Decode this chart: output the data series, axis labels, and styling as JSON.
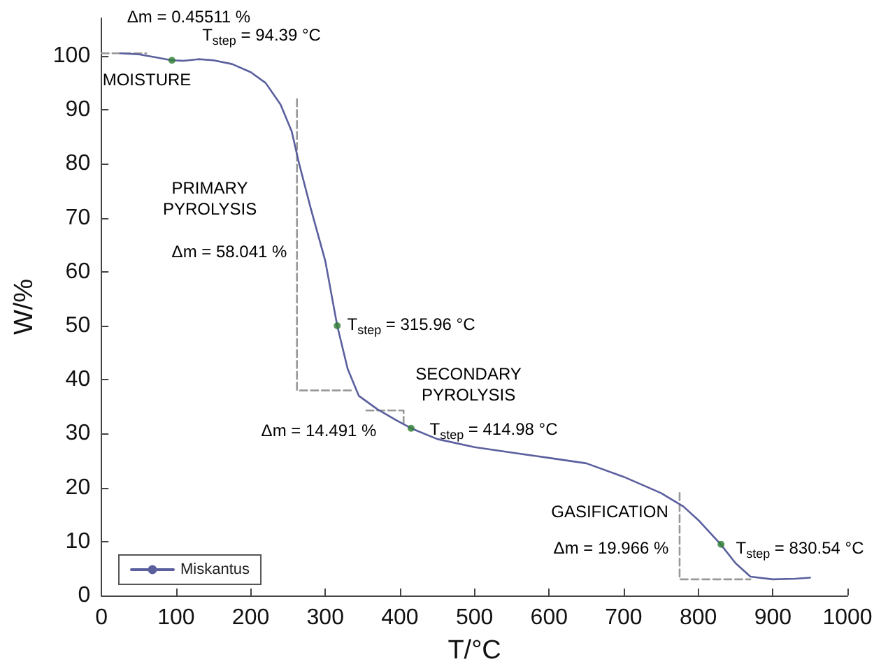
{
  "chart_data": {
    "type": "line",
    "xlabel": "T/°C",
    "ylabel": "W/%",
    "xlim": [
      0,
      1000
    ],
    "ylim": [
      0,
      107
    ],
    "xticks": [
      0,
      100,
      200,
      300,
      400,
      500,
      600,
      700,
      800,
      900,
      1000
    ],
    "yticks": [
      0,
      10,
      20,
      30,
      40,
      50,
      60,
      70,
      80,
      90,
      100
    ],
    "grid": false,
    "legend": "bottom left",
    "marker": "none",
    "line_style": "solid",
    "series": [
      {
        "name": "Miskantus",
        "color": "#5b5f9e",
        "x": [
          25,
          50,
          70,
          94,
          110,
          130,
          150,
          175,
          200,
          220,
          240,
          255,
          265,
          280,
          300,
          316,
          330,
          345,
          370,
          395,
          415,
          450,
          500,
          550,
          600,
          650,
          700,
          750,
          780,
          800,
          830,
          850,
          870,
          900,
          930,
          950
        ],
        "values": [
          100.5,
          100.3,
          99.8,
          99.2,
          99.1,
          99.4,
          99.2,
          98.5,
          97,
          95,
          91,
          86,
          80,
          72,
          62,
          50,
          42,
          37,
          34.5,
          32.5,
          31,
          29,
          27.5,
          26.5,
          25.5,
          24.5,
          22,
          19,
          16.5,
          14,
          9.5,
          6,
          3.5,
          3,
          3.1,
          3.3
        ]
      },
      {
        "type": "scatter",
        "color": "#2e7d32",
        "marker": "circle",
        "x": [
          94.39,
          315.96,
          414.98,
          830.54
        ],
        "values": [
          99.2,
          50,
          31,
          9.5
        ]
      },
      {
        "color": "#999999",
        "line_style": "dashed",
        "x": [
          0,
          60
        ],
        "values": [
          100.5,
          100.5
        ]
      },
      {
        "color": "#999999",
        "line_style": "dashed",
        "x": [
          262,
          262,
          335
        ],
        "values": [
          92,
          38,
          38
        ]
      },
      {
        "color": "#999999",
        "line_style": "dashed",
        "x": [
          355,
          405,
          405
        ],
        "values": [
          34.3,
          34.3,
          32
        ]
      },
      {
        "color": "#999999",
        "line_style": "dashed",
        "x": [
          775,
          775,
          870
        ],
        "values": [
          19,
          3,
          3
        ]
      }
    ],
    "annotations": [
      "Δm = 0.45511 %",
      "T$_{step}$ = 94.39 °C",
      "MOISTURE",
      "PRIMARY\nPYROLYSIS",
      "Δm = 58.041 %",
      "T$_{step}$ = 315.96 °C",
      "SECONDARY\nPYROLYSIS",
      "Δm = 14.491 %",
      "T$_{step}$ = 414.98 °C",
      "GASIFICATION",
      "Δm = 19.966 %",
      "T$_{step}$ = 830.54 °C"
    ]
  }
}
